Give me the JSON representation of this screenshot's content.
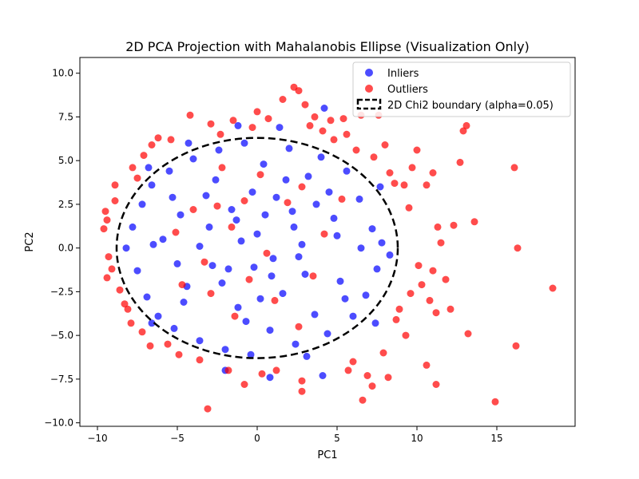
{
  "chart_data": {
    "type": "scatter",
    "title": "2D PCA Projection with Mahalanobis Ellipse (Visualization Only)",
    "xlabel": "PC1",
    "ylabel": "PC2",
    "xlim": [
      -11.1,
      19.9
    ],
    "ylim": [
      -10.2,
      10.9
    ],
    "xticks": [
      -10,
      -5,
      0,
      5,
      10,
      15
    ],
    "yticks": [
      -10.0,
      -7.5,
      -5.0,
      -2.5,
      0.0,
      2.5,
      5.0,
      7.5,
      10.0
    ],
    "xtick_labels": [
      "−10",
      "−5",
      "0",
      "5",
      "10",
      "15"
    ],
    "ytick_labels": [
      "−10.0",
      "−7.5",
      "−5.0",
      "−2.5",
      "0.0",
      "2.5",
      "5.0",
      "7.5",
      "10.0"
    ],
    "grid": false,
    "legend_position": "upper-right",
    "legend": [
      {
        "label": "Inliers",
        "kind": "marker",
        "color": "#0000ff"
      },
      {
        "label": "Outliers",
        "kind": "marker",
        "color": "#ff0000"
      },
      {
        "label": "2D Chi2 boundary (alpha=0.05)",
        "kind": "dashed-line",
        "color": "#000000"
      }
    ],
    "colors": {
      "inliers": "#0000ff",
      "outliers": "#ff0000",
      "ellipse": "#000000"
    },
    "ellipse": {
      "center": [
        0,
        0
      ],
      "semi_axis_x": 8.8,
      "semi_axis_y": 6.3,
      "angle": 0
    },
    "series": [
      {
        "name": "Inliers",
        "points": [
          [
            -7.8,
            1.2
          ],
          [
            -7.5,
            -1.3
          ],
          [
            -7.2,
            2.5
          ],
          [
            -6.9,
            -2.8
          ],
          [
            -6.6,
            3.6
          ],
          [
            -6.2,
            -3.9
          ],
          [
            -5.9,
            0.5
          ],
          [
            -5.5,
            4.4
          ],
          [
            -5.2,
            -4.6
          ],
          [
            -4.8,
            1.9
          ],
          [
            -4.4,
            -2.2
          ],
          [
            -4.0,
            5.1
          ],
          [
            -3.6,
            -5.3
          ],
          [
            -3.2,
            3.0
          ],
          [
            -2.8,
            -1.0
          ],
          [
            -2.4,
            5.6
          ],
          [
            -2.0,
            -5.8
          ],
          [
            -1.6,
            2.2
          ],
          [
            -1.2,
            -3.4
          ],
          [
            -0.8,
            6.0
          ],
          [
            -0.4,
            -6.1
          ],
          [
            0.0,
            0.8
          ],
          [
            0.4,
            4.8
          ],
          [
            0.8,
            -4.7
          ],
          [
            1.2,
            2.9
          ],
          [
            1.6,
            -2.6
          ],
          [
            2.0,
            5.7
          ],
          [
            2.4,
            -5.5
          ],
          [
            2.8,
            0.2
          ],
          [
            3.2,
            4.1
          ],
          [
            3.6,
            -3.8
          ],
          [
            4.0,
            5.2
          ],
          [
            4.4,
            -4.9
          ],
          [
            4.8,
            1.7
          ],
          [
            5.2,
            -1.9
          ],
          [
            5.6,
            4.4
          ],
          [
            6.0,
            -3.9
          ],
          [
            6.4,
            2.8
          ],
          [
            6.8,
            -2.7
          ],
          [
            7.2,
            1.1
          ],
          [
            7.5,
            -1.2
          ],
          [
            7.8,
            0.3
          ],
          [
            -8.2,
            0.0
          ],
          [
            8.3,
            -0.4
          ],
          [
            -1.0,
            0.4
          ],
          [
            1.0,
            -0.6
          ],
          [
            -3.0,
            1.2
          ],
          [
            3.0,
            -1.5
          ],
          [
            -5.0,
            -0.9
          ],
          [
            5.0,
            0.7
          ],
          [
            -2.2,
            -2.0
          ],
          [
            2.2,
            2.1
          ],
          [
            0.2,
            -2.9
          ],
          [
            -0.3,
            3.2
          ],
          [
            4.5,
            3.2
          ],
          [
            -4.6,
            -3.1
          ],
          [
            6.5,
            0.0
          ],
          [
            -6.5,
            0.2
          ],
          [
            1.4,
            6.9
          ],
          [
            3.1,
            -6.2
          ],
          [
            4.2,
            8.0
          ],
          [
            0.8,
            -7.4
          ],
          [
            -2.0,
            -7.0
          ],
          [
            4.1,
            -7.3
          ],
          [
            -1.2,
            7.0
          ],
          [
            -4.3,
            6.0
          ],
          [
            7.7,
            3.5
          ],
          [
            7.4,
            -4.3
          ],
          [
            -6.8,
            4.6
          ],
          [
            -6.6,
            -4.3
          ],
          [
            0.5,
            1.9
          ],
          [
            -1.8,
            -1.2
          ],
          [
            2.6,
            -0.5
          ],
          [
            -3.6,
            0.1
          ],
          [
            3.7,
            2.5
          ],
          [
            -0.7,
            -4.2
          ],
          [
            1.8,
            3.9
          ],
          [
            -5.3,
            2.9
          ],
          [
            5.5,
            -2.9
          ],
          [
            -2.6,
            3.9
          ],
          [
            2.3,
            1.2
          ],
          [
            -1.3,
            1.6
          ],
          [
            0.9,
            -1.6
          ],
          [
            -0.2,
            -1.1
          ]
        ]
      },
      {
        "name": "Outliers",
        "points": [
          [
            -9.6,
            1.1
          ],
          [
            -9.4,
            1.6
          ],
          [
            -9.5,
            2.1
          ],
          [
            -9.4,
            -1.7
          ],
          [
            -9.3,
            -0.5
          ],
          [
            -9.1,
            -1.2
          ],
          [
            -8.9,
            3.6
          ],
          [
            -8.9,
            2.7
          ],
          [
            -8.6,
            -2.4
          ],
          [
            -8.3,
            -3.2
          ],
          [
            -8.1,
            -3.5
          ],
          [
            -7.9,
            -4.3
          ],
          [
            -7.8,
            4.6
          ],
          [
            -7.5,
            4.0
          ],
          [
            -7.2,
            -4.8
          ],
          [
            -7.1,
            5.3
          ],
          [
            -6.7,
            -5.6
          ],
          [
            -6.6,
            5.9
          ],
          [
            -6.2,
            6.3
          ],
          [
            -5.6,
            -5.5
          ],
          [
            -5.4,
            6.2
          ],
          [
            -4.9,
            -6.1
          ],
          [
            -4.2,
            7.6
          ],
          [
            -3.6,
            -6.4
          ],
          [
            -3.1,
            -9.2
          ],
          [
            -2.9,
            7.1
          ],
          [
            -2.3,
            6.5
          ],
          [
            -1.8,
            -7.0
          ],
          [
            -1.5,
            7.3
          ],
          [
            -0.8,
            -7.8
          ],
          [
            -0.3,
            6.9
          ],
          [
            0.0,
            7.8
          ],
          [
            0.3,
            -7.2
          ],
          [
            0.7,
            7.4
          ],
          [
            1.2,
            -7.0
          ],
          [
            1.6,
            8.5
          ],
          [
            2.3,
            9.2
          ],
          [
            2.6,
            9.0
          ],
          [
            2.8,
            -8.2
          ],
          [
            2.8,
            -7.6
          ],
          [
            3.0,
            8.2
          ],
          [
            3.3,
            7.0
          ],
          [
            3.6,
            7.5
          ],
          [
            4.1,
            6.7
          ],
          [
            4.6,
            7.3
          ],
          [
            4.8,
            6.2
          ],
          [
            5.4,
            7.4
          ],
          [
            5.6,
            6.5
          ],
          [
            5.7,
            -7.0
          ],
          [
            6.0,
            -6.5
          ],
          [
            6.2,
            5.6
          ],
          [
            6.5,
            7.6
          ],
          [
            6.6,
            -8.7
          ],
          [
            6.9,
            -7.3
          ],
          [
            7.2,
            -7.9
          ],
          [
            7.3,
            5.2
          ],
          [
            7.6,
            7.6
          ],
          [
            7.9,
            -6.0
          ],
          [
            8.0,
            5.9
          ],
          [
            8.2,
            -7.4
          ],
          [
            8.3,
            4.3
          ],
          [
            8.6,
            3.7
          ],
          [
            8.7,
            -4.1
          ],
          [
            8.9,
            -3.5
          ],
          [
            9.2,
            3.6
          ],
          [
            9.3,
            -5.0
          ],
          [
            9.5,
            2.3
          ],
          [
            9.6,
            -2.6
          ],
          [
            9.7,
            4.6
          ],
          [
            10.0,
            5.6
          ],
          [
            10.1,
            -1.0
          ],
          [
            10.3,
            -2.1
          ],
          [
            10.6,
            3.6
          ],
          [
            10.6,
            -6.7
          ],
          [
            10.8,
            -3.0
          ],
          [
            11.0,
            4.3
          ],
          [
            11.0,
            -1.3
          ],
          [
            11.2,
            -3.7
          ],
          [
            11.2,
            -7.8
          ],
          [
            11.3,
            1.2
          ],
          [
            11.5,
            0.3
          ],
          [
            11.8,
            -1.8
          ],
          [
            12.1,
            -3.5
          ],
          [
            12.3,
            1.3
          ],
          [
            12.7,
            4.9
          ],
          [
            12.9,
            6.7
          ],
          [
            13.1,
            7.0
          ],
          [
            13.2,
            -4.9
          ],
          [
            13.6,
            1.5
          ],
          [
            14.9,
            -8.8
          ],
          [
            16.1,
            4.6
          ],
          [
            16.2,
            -5.6
          ],
          [
            16.3,
            0.0
          ],
          [
            18.5,
            -2.3
          ],
          [
            -2.5,
            2.4
          ],
          [
            -1.6,
            1.2
          ],
          [
            -3.3,
            -0.8
          ],
          [
            -0.8,
            2.7
          ],
          [
            0.6,
            -0.3
          ],
          [
            1.9,
            2.6
          ],
          [
            -4.0,
            2.2
          ],
          [
            3.5,
            -1.6
          ],
          [
            -2.9,
            -2.6
          ],
          [
            0.2,
            4.2
          ],
          [
            2.8,
            3.5
          ],
          [
            -5.1,
            0.9
          ],
          [
            4.2,
            0.8
          ],
          [
            -1.4,
            -3.9
          ],
          [
            1.1,
            -3.0
          ],
          [
            -4.7,
            -2.1
          ],
          [
            5.3,
            2.8
          ],
          [
            2.6,
            -4.5
          ],
          [
            -2.2,
            4.6
          ],
          [
            -0.5,
            -1.8
          ]
        ]
      }
    ]
  }
}
